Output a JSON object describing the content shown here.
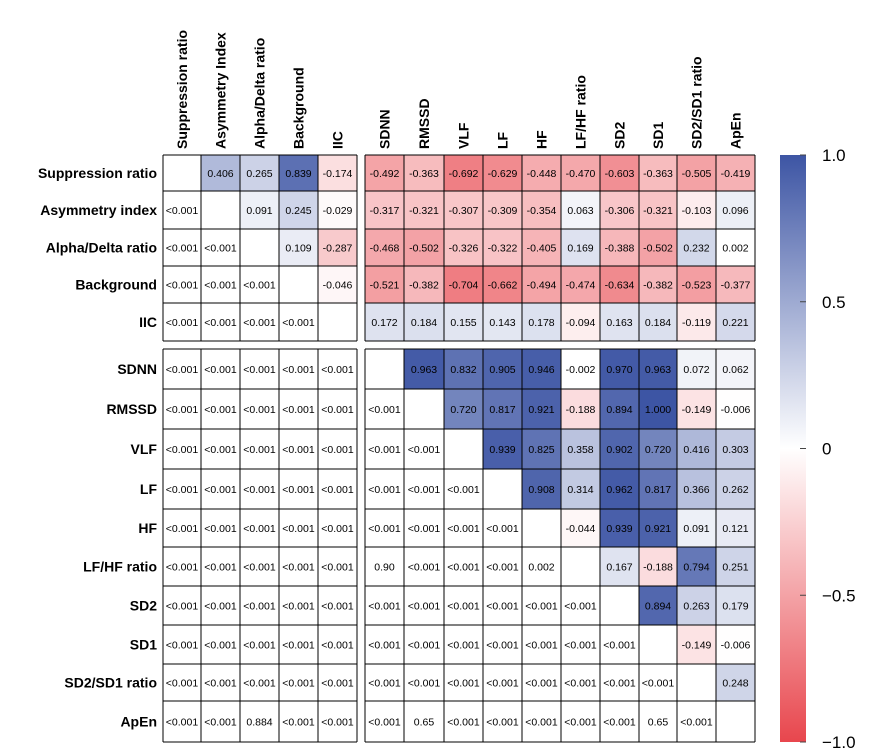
{
  "chart_data": {
    "type": "heatmap",
    "title": "",
    "row_labels": [
      "Suppression ratio",
      "Asymmetry index",
      "Alpha/Delta ratio",
      "Background",
      "IIC",
      "SDNN",
      "RMSSD",
      "VLF",
      "LF",
      "HF",
      "LF/HF ratio",
      "SD2",
      "SD1",
      "SD2/SD1 ratio",
      "ApEn"
    ],
    "column_labels": [
      "Suppression ratio",
      "Asymmetry Index",
      "Alpha/Delta ratio",
      "Background",
      "IIC",
      "SDNN",
      "RMSSD",
      "VLF",
      "LF",
      "HF",
      "LF/HF ratio",
      "SD2",
      "SD1",
      "SD2/SD1 ratio",
      "ApEn"
    ],
    "upper_triangle": "correlation coefficient (colored)",
    "lower_triangle": "p-value",
    "cells": [
      [
        "",
        "0.406",
        "0.265",
        "0.839",
        "-0.174",
        "-0.492",
        "-0.363",
        "-0.692",
        "-0.629",
        "-0.448",
        "-0.470",
        "-0.603",
        "-0.363",
        "-0.505",
        "-0.419"
      ],
      [
        "<0.001",
        "",
        "0.091",
        "0.245",
        "-0.029",
        "-0.317",
        "-0.321",
        "-0.307",
        "-0.309",
        "-0.354",
        "0.063",
        "-0.306",
        "-0.321",
        "-0.103",
        "0.096"
      ],
      [
        "<0.001",
        "<0.001",
        "",
        "0.109",
        "-0.287",
        "-0.468",
        "-0.502",
        "-0.326",
        "-0.322",
        "-0.405",
        "0.169",
        "-0.388",
        "-0.502",
        "0.232",
        "0.002"
      ],
      [
        "<0.001",
        "<0.001",
        "<0.001",
        "",
        "-0.046",
        "-0.521",
        "-0.382",
        "-0.704",
        "-0.662",
        "-0.494",
        "-0.474",
        "-0.634",
        "-0.382",
        "-0.523",
        "-0.377"
      ],
      [
        "<0.001",
        "<0.001",
        "<0.001",
        "<0.001",
        "",
        "0.172",
        "0.184",
        "0.155",
        "0.143",
        "0.178",
        "-0.094",
        "0.163",
        "0.184",
        "-0.119",
        "0.221"
      ],
      [
        "<0.001",
        "<0.001",
        "<0.001",
        "<0.001",
        "<0.001",
        "",
        "0.963",
        "0.832",
        "0.905",
        "0.946",
        "-0.002",
        "0.970",
        "0.963",
        "0.072",
        "0.062"
      ],
      [
        "<0.001",
        "<0.001",
        "<0.001",
        "<0.001",
        "<0.001",
        "<0.001",
        "",
        "0.720",
        "0.817",
        "0.921",
        "-0.188",
        "0.894",
        "1.000",
        "-0.149",
        "-0.006"
      ],
      [
        "<0.001",
        "<0.001",
        "<0.001",
        "<0.001",
        "<0.001",
        "<0.001",
        "<0.001",
        "",
        "0.939",
        "0.825",
        "0.358",
        "0.902",
        "0.720",
        "0.416",
        "0.303"
      ],
      [
        "<0.001",
        "<0.001",
        "<0.001",
        "<0.001",
        "<0.001",
        "<0.001",
        "<0.001",
        "<0.001",
        "",
        "0.908",
        "0.314",
        "0.962",
        "0.817",
        "0.366",
        "0.262"
      ],
      [
        "<0.001",
        "<0.001",
        "<0.001",
        "<0.001",
        "<0.001",
        "<0.001",
        "<0.001",
        "<0.001",
        "<0.001",
        "",
        "-0.044",
        "0.939",
        "0.921",
        "0.091",
        "0.121"
      ],
      [
        "<0.001",
        "<0.001",
        "<0.001",
        "<0.001",
        "<0.001",
        "0.90",
        "<0.001",
        "<0.001",
        "<0.001",
        "0.002",
        "",
        "0.167",
        "-0.188",
        "0.794",
        "0.251"
      ],
      [
        "<0.001",
        "<0.001",
        "<0.001",
        "<0.001",
        "<0.001",
        "<0.001",
        "<0.001",
        "<0.001",
        "<0.001",
        "<0.001",
        "<0.001",
        "",
        "0.894",
        "0.263",
        "0.179"
      ],
      [
        "<0.001",
        "<0.001",
        "<0.001",
        "<0.001",
        "<0.001",
        "<0.001",
        "<0.001",
        "<0.001",
        "<0.001",
        "<0.001",
        "<0.001",
        "<0.001",
        "",
        "-0.149",
        "-0.006"
      ],
      [
        "<0.001",
        "<0.001",
        "<0.001",
        "<0.001",
        "<0.001",
        "<0.001",
        "<0.001",
        "<0.001",
        "<0.001",
        "<0.001",
        "<0.001",
        "<0.001",
        "<0.001",
        "",
        "0.248"
      ],
      [
        "<0.001",
        "<0.001",
        "0.884",
        "<0.001",
        "<0.001",
        "<0.001",
        "0.65",
        "<0.001",
        "<0.001",
        "<0.001",
        "<0.001",
        "<0.001",
        "0.65",
        "<0.001",
        ""
      ]
    ],
    "color_scale": {
      "range": [
        -1.0,
        1.0
      ],
      "min_color": "#e8464d",
      "mid_color": "#ffffff",
      "max_color": "#3d55a4",
      "ticks": [
        {
          "value": 1.0,
          "label": "1.0"
        },
        {
          "value": 0.5,
          "label": "0.5"
        },
        {
          "value": 0,
          "label": "0"
        },
        {
          "value": -0.5,
          "label": "−0.5"
        },
        {
          "value": -1.0,
          "label": "−1.0"
        }
      ]
    }
  }
}
